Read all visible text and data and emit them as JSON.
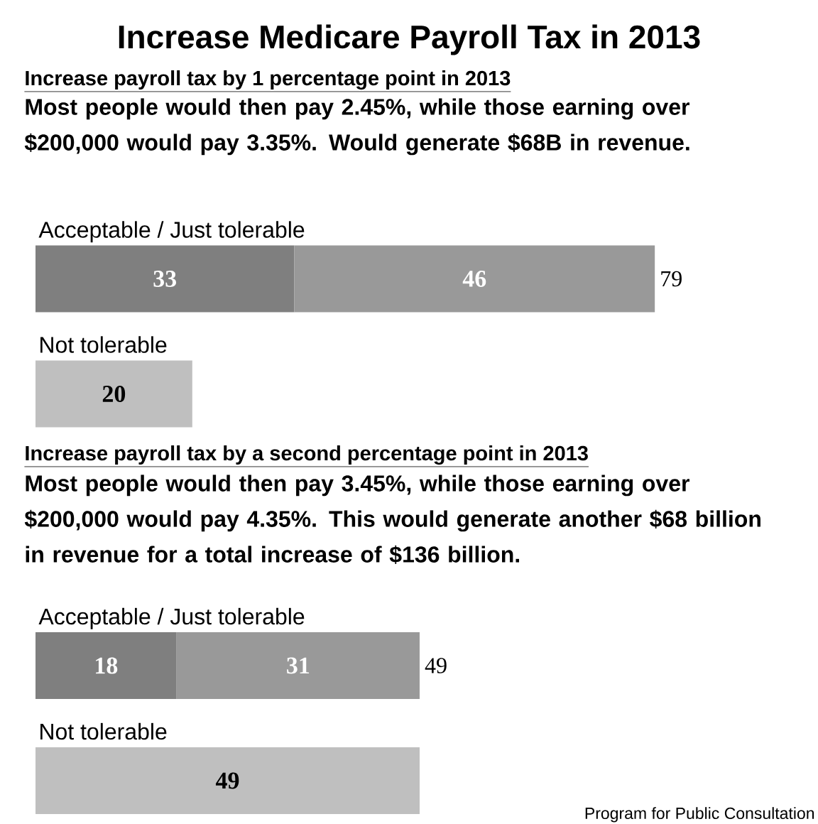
{
  "chart_data": [
    {
      "type": "bar",
      "orientation": "horizontal",
      "stacked": true,
      "title": "Increase Medicare Payroll Tax in 2013",
      "subtitle": "Increase payroll tax by 1 percentage point in 2013",
      "annotations": [
        "Most people would then pay 2.45%, while those earning over $200,000 would pay 3.35%. Would generate $68B in revenue."
      ],
      "categories": [
        "Acceptable / Just tolerable",
        "Not tolerable"
      ],
      "series": [
        {
          "color": "#7f7f7f",
          "values": [
            33,
            null
          ]
        },
        {
          "color": "#999999",
          "values": [
            46,
            null
          ]
        },
        {
          "color": "#bfbfbf",
          "values": [
            null,
            20
          ]
        }
      ],
      "totals": [
        "79",
        null
      ],
      "data_labels": true
    },
    {
      "type": "bar",
      "orientation": "horizontal",
      "stacked": true,
      "subtitle": "Increase payroll tax by a second percentage point in 2013",
      "annotations": [
        "Most people would then pay 3.45%, while those earning over $200,000 would pay 4.35%.  This would generate another $68 billion in revenue for a total increase of $136 billion.",
        "Program for Public Consultation"
      ],
      "categories": [
        "Acceptable / Just tolerable",
        "Not tolerable"
      ],
      "series": [
        {
          "color": "#7f7f7f",
          "values": [
            18,
            null
          ]
        },
        {
          "color": "#999999",
          "values": [
            31,
            null
          ]
        },
        {
          "color": "#bfbfbf",
          "values": [
            null,
            49
          ]
        }
      ],
      "totals": [
        "49",
        null
      ],
      "data_labels": true
    }
  ]
}
